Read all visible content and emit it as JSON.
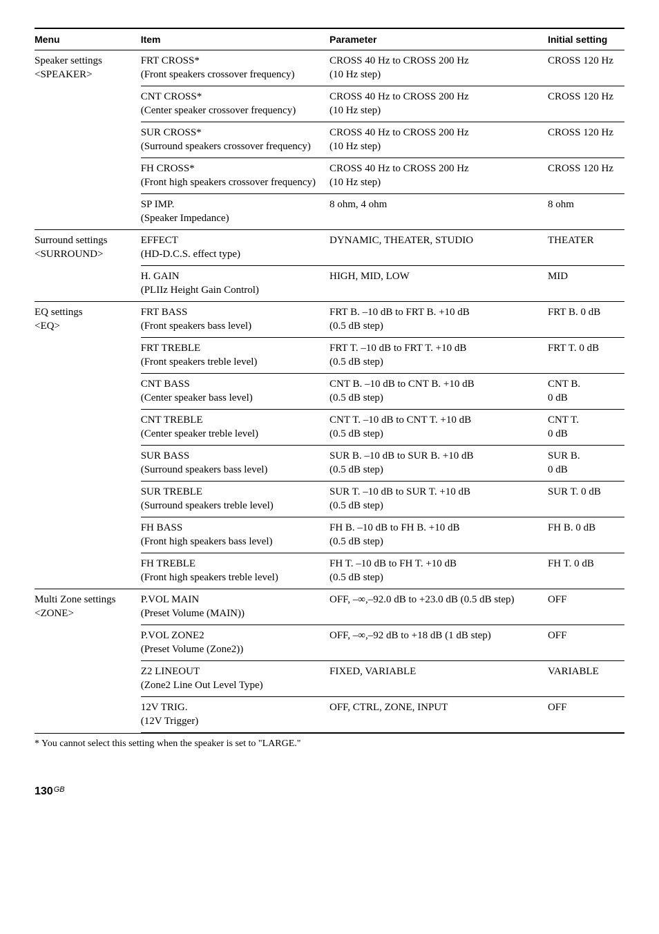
{
  "header": {
    "menu": "Menu",
    "item": "Item",
    "parameter": "Parameter",
    "initial": "Initial setting"
  },
  "groups": [
    {
      "menu": "Speaker settings <SPEAKER>",
      "rows": [
        {
          "item": "FRT CROSS*\n(Front speakers crossover frequency)",
          "param": "CROSS 40 Hz to CROSS 200 Hz\n(10 Hz step)",
          "init": "CROSS 120 Hz"
        },
        {
          "item": "CNT CROSS*\n(Center speaker crossover frequency)",
          "param": "CROSS 40 Hz to CROSS 200 Hz\n(10 Hz step)",
          "init": "CROSS 120 Hz"
        },
        {
          "item": "SUR CROSS*\n(Surround speakers crossover frequency)",
          "param": "CROSS 40 Hz to CROSS 200 Hz\n(10 Hz step)",
          "init": "CROSS 120 Hz"
        },
        {
          "item": "FH CROSS*\n(Front high speakers crossover frequency)",
          "param": "CROSS 40 Hz to CROSS 200 Hz\n(10 Hz step)",
          "init": "CROSS 120 Hz"
        },
        {
          "item": "SP IMP.\n(Speaker Impedance)",
          "param": "8 ohm, 4 ohm",
          "init": "8 ohm"
        }
      ]
    },
    {
      "menu": "Surround settings <SURROUND>",
      "rows": [
        {
          "item": "EFFECT\n(HD-D.C.S. effect type)",
          "param": "DYNAMIC, THEATER, STUDIO",
          "init": "THEATER"
        },
        {
          "item": "H. GAIN\n(PLIIz Height Gain Control)",
          "param": "HIGH, MID, LOW",
          "init": "MID"
        }
      ]
    },
    {
      "menu": "EQ settings\n<EQ>",
      "rows": [
        {
          "item": "FRT BASS\n(Front speakers bass level)",
          "param": "FRT B. –10 dB to FRT B. +10 dB\n(0.5 dB step)",
          "init": "FRT B. 0 dB"
        },
        {
          "item": "FRT TREBLE\n(Front speakers treble level)",
          "param": "FRT T. –10 dB to FRT T. +10 dB\n(0.5 dB step)",
          "init": "FRT T. 0 dB"
        },
        {
          "item": "CNT BASS\n(Center speaker bass level)",
          "param": "CNT B. –10 dB to CNT B. +10 dB\n(0.5 dB step)",
          "init": "CNT B.\n0 dB"
        },
        {
          "item": "CNT TREBLE\n(Center speaker treble level)",
          "param": "CNT T. –10 dB to CNT T. +10 dB\n(0.5 dB step)",
          "init": "CNT T.\n0 dB"
        },
        {
          "item": "SUR BASS\n(Surround speakers bass level)",
          "param": "SUR B. –10 dB to SUR B. +10 dB\n(0.5 dB step)",
          "init": "SUR B.\n0 dB"
        },
        {
          "item": "SUR TREBLE\n(Surround speakers treble level)",
          "param": "SUR T. –10 dB to SUR T. +10 dB\n(0.5 dB step)",
          "init": "SUR T. 0 dB"
        },
        {
          "item": "FH BASS\n(Front high speakers bass level)",
          "param": "FH B. –10 dB to FH B. +10 dB\n(0.5 dB step)",
          "init": "FH B. 0 dB"
        },
        {
          "item": "FH TREBLE\n(Front high speakers treble level)",
          "param": "FH T. –10 dB to FH T. +10 dB\n(0.5 dB step)",
          "init": "FH T. 0 dB"
        }
      ]
    },
    {
      "menu": "Multi Zone settings\n<ZONE>",
      "rows": [
        {
          "item": "P.VOL MAIN\n(Preset Volume (MAIN))",
          "param": "OFF, –∞,–92.0 dB to +23.0 dB (0.5 dB step)",
          "init": "OFF"
        },
        {
          "item": "P.VOL ZONE2\n(Preset Volume (Zone2))",
          "param": "OFF, –∞,–92 dB to +18 dB (1 dB step)",
          "init": "OFF"
        },
        {
          "item": "Z2 LINEOUT\n(Zone2 Line Out Level Type)",
          "param": "FIXED, VARIABLE",
          "init": "VARIABLE"
        },
        {
          "item": "12V TRIG.\n(12V Trigger)",
          "param": "OFF, CTRL, ZONE, INPUT",
          "init": "OFF"
        }
      ]
    }
  ],
  "footnote": "*   You cannot select this setting when the speaker is set to \"LARGE.\"",
  "pagenum": "130",
  "pagenum_suffix": "GB"
}
